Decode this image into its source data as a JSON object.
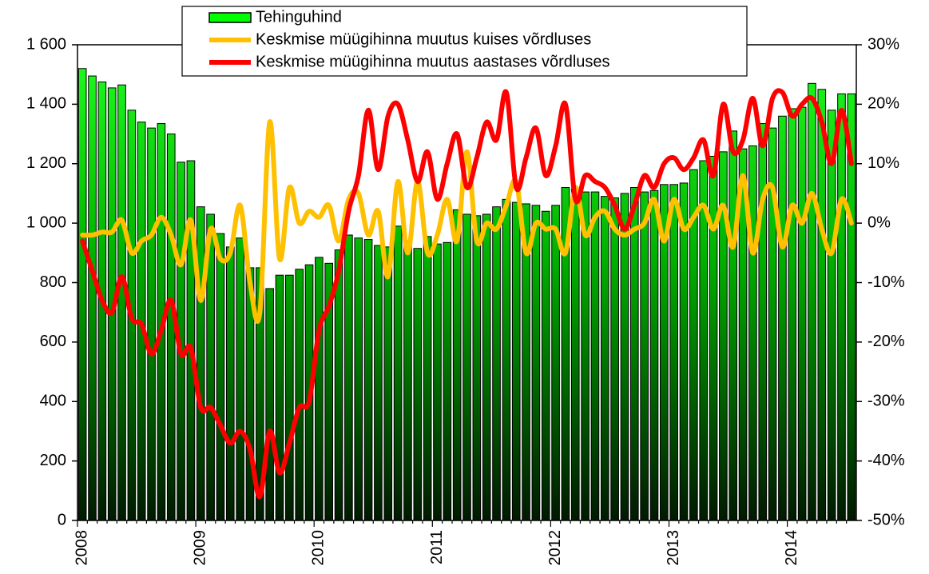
{
  "chart_data": {
    "type": "bar",
    "categories": [
      "2008",
      null,
      null,
      null,
      null,
      null,
      null,
      null,
      null,
      null,
      null,
      null,
      "2009",
      null,
      null,
      null,
      null,
      null,
      null,
      null,
      null,
      null,
      null,
      null,
      "2010",
      null,
      null,
      null,
      null,
      null,
      null,
      null,
      null,
      null,
      null,
      null,
      "2011",
      null,
      null,
      null,
      null,
      null,
      null,
      null,
      null,
      null,
      null,
      null,
      "2012",
      null,
      null,
      null,
      null,
      null,
      null,
      null,
      null,
      null,
      null,
      null,
      "2013",
      null,
      null,
      null,
      null,
      null,
      null,
      null,
      null,
      null,
      null,
      null,
      "2014",
      null,
      null,
      null,
      null,
      null,
      null
    ],
    "series": [
      {
        "name": "Tehinguhind",
        "type": "bar",
        "color": "#00ff00",
        "axis": "y",
        "values": [
          1520,
          1495,
          1475,
          1455,
          1465,
          1380,
          1340,
          1320,
          1335,
          1300,
          1205,
          1210,
          1055,
          1030,
          965,
          920,
          950,
          850,
          850,
          780,
          825,
          825,
          845,
          860,
          885,
          865,
          910,
          960,
          950,
          945,
          925,
          920,
          990,
          940,
          915,
          955,
          930,
          935,
          1045,
          1030,
          1025,
          1030,
          1055,
          1080,
          1070,
          1065,
          1060,
          1040,
          1060,
          1120,
          1115,
          1105,
          1105,
          1090,
          1085,
          1100,
          1120,
          1105,
          1110,
          1130,
          1130,
          1135,
          1180,
          1210,
          1225,
          1240,
          1310,
          1250,
          1260,
          1335,
          1320,
          1360,
          1385,
          1390,
          1470,
          1450,
          1380,
          1435,
          1435
        ]
      },
      {
        "name": "Keskmise müügihinna muutus kuises võrdluses",
        "type": "line",
        "color": "#ffc000",
        "axis": "y2",
        "values": [
          -2,
          -2,
          -1.5,
          -1.5,
          0.5,
          -5,
          -3,
          -2,
          1,
          -2,
          -7,
          0.5,
          -13,
          -1,
          -6,
          -5,
          3,
          -10,
          -15,
          17,
          -6,
          6,
          0,
          2,
          1,
          3,
          -3,
          4,
          5,
          -2,
          2,
          -9,
          7,
          -5,
          7,
          -5,
          -2,
          4,
          -3,
          12,
          -3,
          0,
          -1,
          3,
          7,
          -5,
          0,
          -1,
          -1,
          -5,
          6,
          -2,
          1,
          2,
          -1,
          -2,
          -1,
          0,
          4,
          -3,
          4,
          -1,
          1,
          3,
          -1,
          3,
          -4,
          8,
          -5,
          4,
          6,
          -4,
          3,
          0,
          5,
          -1,
          -5,
          4,
          0
        ]
      },
      {
        "name": "Keskmise müügihinna muutus aastases võrdluses",
        "type": "line",
        "color": "#ff0000",
        "axis": "y2",
        "values": [
          -3,
          -8,
          -13,
          -15,
          -9,
          -16,
          -17,
          -22,
          -18,
          -13,
          -22,
          -21,
          -31,
          -31,
          -34,
          -37,
          -35,
          -38,
          -46,
          -35,
          -42,
          -37,
          -31,
          -30,
          -18,
          -14,
          -8,
          2,
          8,
          19,
          9,
          18,
          20,
          14,
          7,
          12,
          4,
          10,
          15,
          6,
          11,
          17,
          14,
          22,
          6,
          11,
          16,
          8,
          13,
          20,
          4,
          8,
          7,
          6,
          3,
          -1,
          3,
          8,
          6,
          10,
          11,
          9,
          11,
          14,
          8,
          20,
          12,
          14,
          21,
          13,
          21,
          22,
          18,
          20,
          21,
          17,
          10,
          19,
          10
        ]
      }
    ],
    "ylim": [
      0,
      1600
    ],
    "yticks": [
      0,
      200,
      400,
      600,
      800,
      {
        "value": 1000,
        "label": "1 000"
      },
      {
        "value": 1200,
        "label": "1 200"
      },
      {
        "value": 1400,
        "label": "1 400"
      },
      {
        "value": 1600,
        "label": "1 600"
      }
    ],
    "y2lim": [
      -50,
      30
    ],
    "y2ticks": [
      {
        "value": -50,
        "label": "-50%"
      },
      {
        "value": -40,
        "label": "-40%"
      },
      {
        "value": -30,
        "label": "-30%"
      },
      {
        "value": -20,
        "label": "-20%"
      },
      {
        "value": -10,
        "label": "-10%"
      },
      {
        "value": 0,
        "label": "0%"
      },
      {
        "value": 10,
        "label": "10%"
      },
      {
        "value": 20,
        "label": "20%"
      },
      {
        "value": 30,
        "label": "30%"
      }
    ],
    "legend": "top",
    "grid": false
  }
}
